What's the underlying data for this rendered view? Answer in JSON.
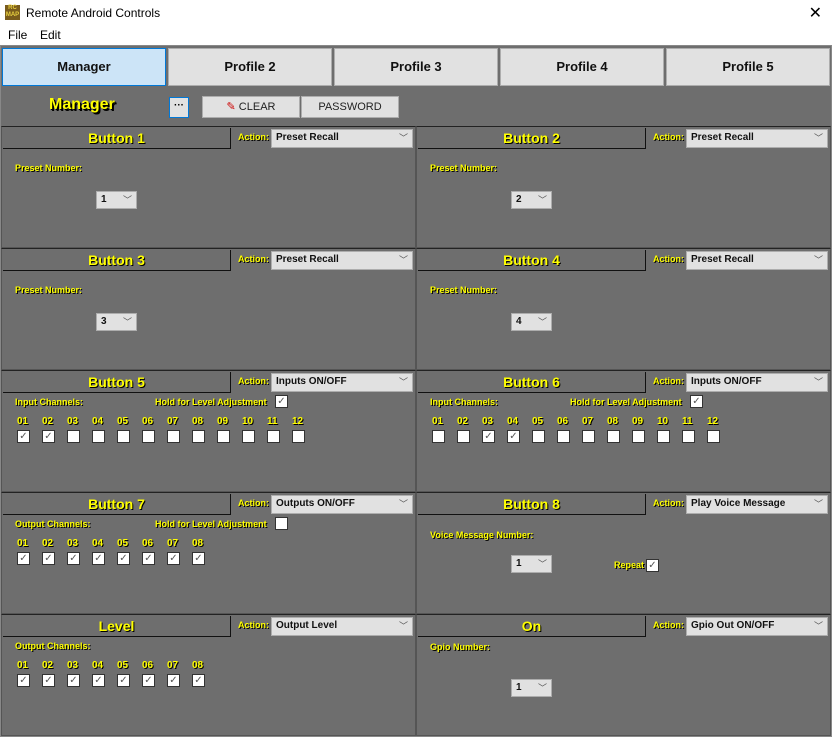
{
  "window": {
    "title": "Remote Android Controls",
    "close": "✕",
    "icon_text": "RC MAP"
  },
  "menu": [
    "File",
    "Edit"
  ],
  "tabs": [
    {
      "label": "Manager",
      "active": true
    },
    {
      "label": "Profile 2"
    },
    {
      "label": "Profile 3"
    },
    {
      "label": "Profile 4"
    },
    {
      "label": "Profile 5"
    }
  ],
  "toolbar": {
    "title": "Manager",
    "dots": "···",
    "clear": "CLEAR",
    "password": "PASSWORD"
  },
  "colors": {
    "panel_bg": "#6e6e6e",
    "title_text": "#ffff00",
    "active_tab": "#cce4f7"
  },
  "action_label": "Action:",
  "panels": [
    {
      "title": "Button 1",
      "action": "Preset Recall",
      "type": "preset",
      "field_label": "Preset Number:",
      "value": "1"
    },
    {
      "title": "Button 2",
      "action": "Preset Recall",
      "type": "preset",
      "field_label": "Preset Number:",
      "value": "2"
    },
    {
      "title": "Button 3",
      "action": "Preset Recall",
      "type": "preset",
      "field_label": "Preset Number:",
      "value": "3"
    },
    {
      "title": "Button 4",
      "action": "Preset Recall",
      "type": "preset",
      "field_label": "Preset Number:",
      "value": "4"
    },
    {
      "title": "Button 5",
      "action": "Inputs ON/OFF",
      "type": "channels",
      "field_label": "Input Channels:",
      "hold_label": "Hold for Level Adjustment",
      "hold": true,
      "channels": [
        "01",
        "02",
        "03",
        "04",
        "05",
        "06",
        "07",
        "08",
        "09",
        "10",
        "11",
        "12"
      ],
      "checked": [
        true,
        true,
        false,
        false,
        false,
        false,
        false,
        false,
        false,
        false,
        false,
        false
      ]
    },
    {
      "title": "Button 6",
      "action": "Inputs ON/OFF",
      "type": "channels",
      "field_label": "Input Channels:",
      "hold_label": "Hold for Level Adjustment",
      "hold": true,
      "channels": [
        "01",
        "02",
        "03",
        "04",
        "05",
        "06",
        "07",
        "08",
        "09",
        "10",
        "11",
        "12"
      ],
      "checked": [
        false,
        false,
        true,
        true,
        false,
        false,
        false,
        false,
        false,
        false,
        false,
        false
      ]
    },
    {
      "title": "Button 7",
      "action": "Outputs ON/OFF",
      "type": "channels",
      "field_label": "Output Channels:",
      "hold_label": "Hold for Level Adjustment",
      "hold": false,
      "channels": [
        "01",
        "02",
        "03",
        "04",
        "05",
        "06",
        "07",
        "08"
      ],
      "checked": [
        true,
        true,
        true,
        true,
        true,
        true,
        true,
        true
      ]
    },
    {
      "title": "Button 8",
      "action": "Play Voice Message",
      "type": "voice",
      "field_label": "Voice Message Number:",
      "value": "1",
      "repeat_label": "Repeat",
      "repeat": true
    },
    {
      "title": "Level",
      "action": "Output Level",
      "type": "channels",
      "field_label": "Output Channels:",
      "channels": [
        "01",
        "02",
        "03",
        "04",
        "05",
        "06",
        "07",
        "08"
      ],
      "checked": [
        true,
        true,
        true,
        true,
        true,
        true,
        true,
        true
      ]
    },
    {
      "title": "On",
      "action": "Gpio Out ON/OFF",
      "type": "gpio",
      "field_label": "Gpio Number:",
      "value": "1"
    }
  ]
}
